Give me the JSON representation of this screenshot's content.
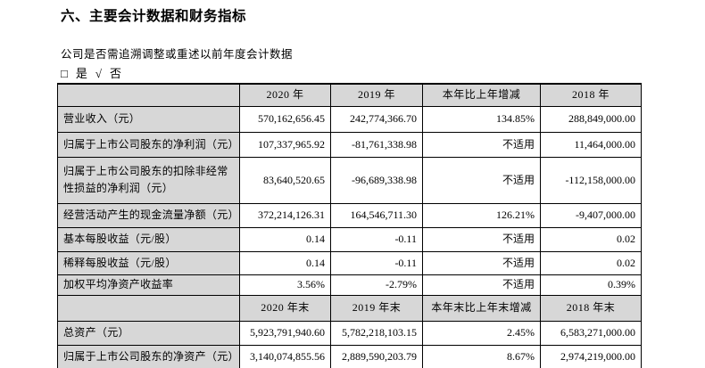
{
  "document": {
    "title": "六、主要会计数据和财务指标",
    "restatement_question": "公司是否需追溯调整或重述以前年度会计数据",
    "checkbox": {
      "yes_symbol": "□",
      "yes_label": "是",
      "no_symbol": "√",
      "no_label": "否"
    }
  },
  "table": {
    "sections": [
      {
        "header": [
          "",
          "2020 年",
          "2019 年",
          "本年比上年增减",
          "2018 年"
        ],
        "rows": [
          [
            "营业收入（元）",
            "570,162,656.45",
            "242,774,366.70",
            "134.85%",
            "288,849,000.00"
          ],
          [
            "归属于上市公司股东的净利润（元）",
            "107,337,965.92",
            "-81,761,338.98",
            "不适用",
            "11,464,000.00"
          ],
          [
            "归属于上市公司股东的扣除非经常性损益的净利润（元）",
            "83,640,520.65",
            "-96,689,338.98",
            "不适用",
            "-112,158,000.00"
          ],
          [
            "经营活动产生的现金流量净额（元）",
            "372,214,126.31",
            "164,546,711.30",
            "126.21%",
            "-9,407,000.00"
          ],
          [
            "基本每股收益（元/股）",
            "0.14",
            "-0.11",
            "不适用",
            "0.02"
          ],
          [
            "稀释每股收益（元/股）",
            "0.14",
            "-0.11",
            "不适用",
            "0.02"
          ],
          [
            "加权平均净资产收益率",
            "3.56%",
            "-2.79%",
            "不适用",
            "0.39%"
          ]
        ]
      },
      {
        "header": [
          "",
          "2020 年末",
          "2019 年末",
          "本年末比上年末增减",
          "2018 年末"
        ],
        "rows": [
          [
            "总资产（元）",
            "5,923,791,940.60",
            "5,782,218,103.15",
            "2.45%",
            "6,583,271,000.00"
          ],
          [
            "归属于上市公司股东的净资产（元）",
            "3,140,074,855.56",
            "2,889,590,203.79",
            "8.67%",
            "2,974,219,000.00"
          ]
        ]
      }
    ]
  },
  "colors": {
    "header_fill": "#d7d7d7",
    "border": "#000000",
    "text": "#000000",
    "background": "#ffffff"
  }
}
